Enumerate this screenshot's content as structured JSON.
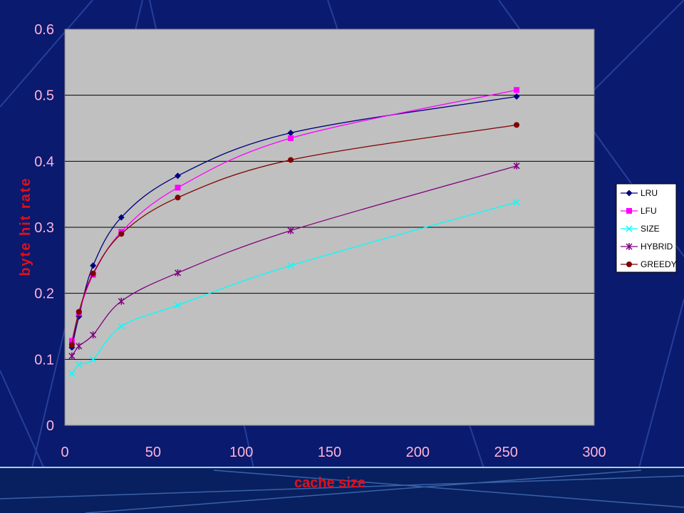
{
  "colors": {
    "background": "#0a1a6e",
    "plot_area": "#c0c0c0",
    "tick_labels": "#ffb3d9",
    "axis_titles": "#e0101a",
    "gridlines": "#000000"
  },
  "chart_data": {
    "type": "line",
    "xlabel": "cache size",
    "ylabel": "byte hit rate",
    "xlim": [
      0,
      300
    ],
    "ylim": [
      0,
      0.6
    ],
    "xticks": [
      "0",
      "50",
      "100",
      "150",
      "200",
      "250",
      "300"
    ],
    "yticks": [
      "0",
      "0.1",
      "0.2",
      "0.3",
      "0.4",
      "0.5",
      "0.6"
    ],
    "grid": "horizontal",
    "legend_position": "right",
    "x": [
      4,
      8,
      16,
      32,
      64,
      128,
      256
    ],
    "series": [
      {
        "name": "LRU",
        "color": "#000080",
        "marker": "diamond",
        "values": [
          0.118,
          0.165,
          0.242,
          0.315,
          0.378,
          0.443,
          0.498
        ]
      },
      {
        "name": "LFU",
        "color": "#ff00ff",
        "marker": "square",
        "values": [
          0.128,
          0.17,
          0.228,
          0.293,
          0.36,
          0.435,
          0.508
        ]
      },
      {
        "name": "SIZE",
        "color": "#00ffff",
        "marker": "x",
        "values": [
          0.078,
          0.092,
          0.1,
          0.15,
          0.182,
          0.242,
          0.338
        ]
      },
      {
        "name": "HYBRID",
        "color": "#800080",
        "marker": "star",
        "values": [
          0.105,
          0.12,
          0.137,
          0.188,
          0.231,
          0.295,
          0.393
        ]
      },
      {
        "name": "GREEDY",
        "color": "#800000",
        "marker": "circle",
        "values": [
          0.122,
          0.172,
          0.23,
          0.29,
          0.345,
          0.402,
          0.455
        ]
      }
    ]
  }
}
